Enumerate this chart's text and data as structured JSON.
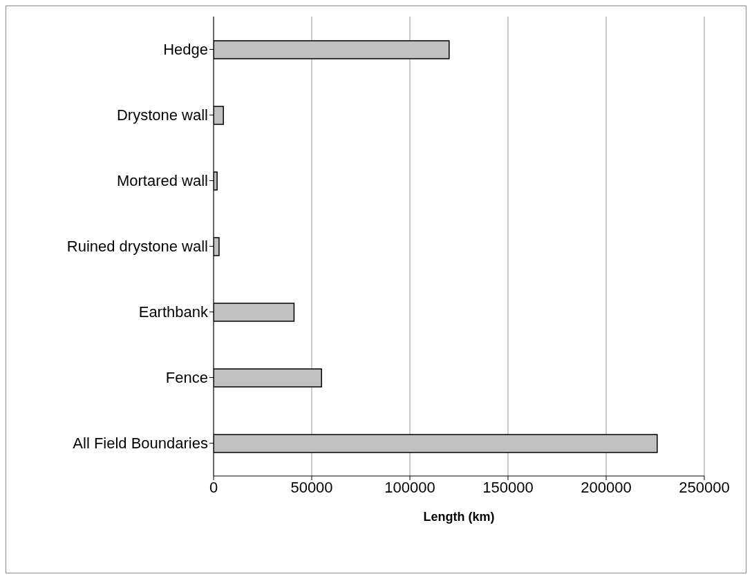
{
  "chart_data": {
    "type": "bar",
    "orientation": "horizontal",
    "xlabel": "Length (km)",
    "categories": [
      "Hedge",
      "Drystone wall",
      "Mortared wall",
      "Ruined drystone wall",
      "Earthbank",
      "Fence",
      "All Field Boundaries"
    ],
    "values": [
      120000,
      5000,
      1800,
      2800,
      41000,
      55000,
      226000
    ],
    "color": "#c0c0c0",
    "xlim": [
      0,
      250000
    ],
    "xticks": [
      0,
      50000,
      100000,
      150000,
      200000,
      250000
    ],
    "grid": "x"
  }
}
